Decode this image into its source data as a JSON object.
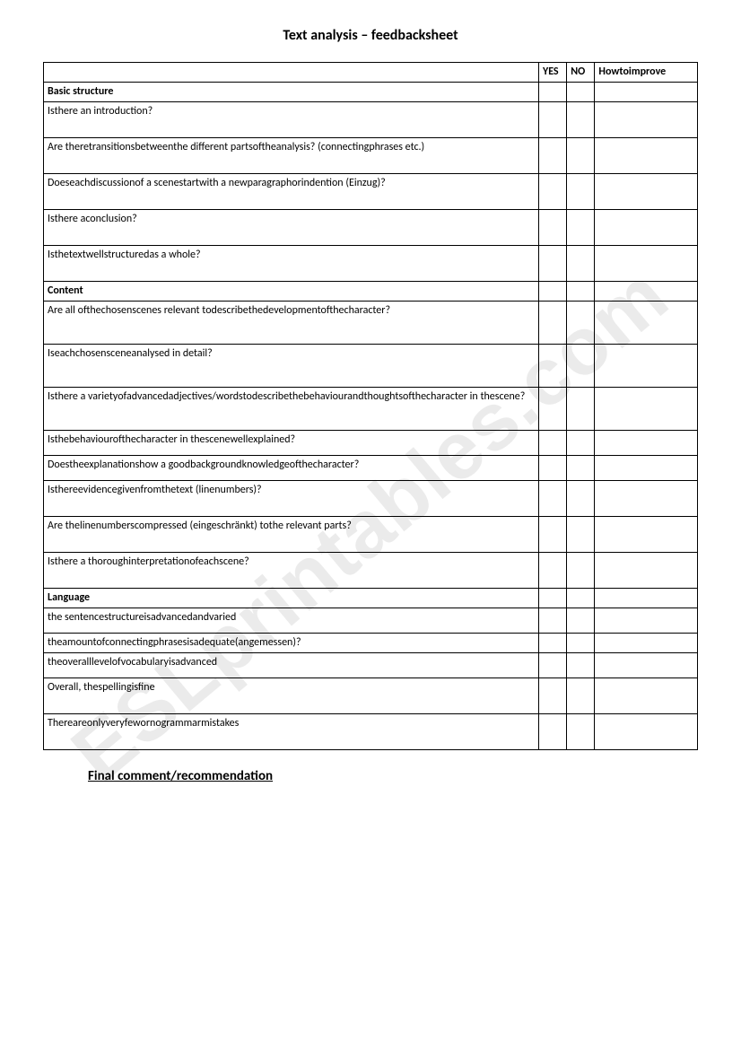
{
  "title": "Text analysis – feedbacksheet",
  "headers": {
    "question": "",
    "yes": "YES",
    "no": "NO",
    "how": "Howtoimprove"
  },
  "sections": [
    {
      "name": "Basic structure",
      "rows": [
        {
          "q": "Isthere an introduction?",
          "cls": "med"
        },
        {
          "q": "Are theretransitionsbetweenthe different partsoftheanalysis? (connectingphrases etc.)",
          "cls": "med"
        },
        {
          "q": "Doeseachdiscussionof a scenestartwith a newparagraphorindention (Einzug)?",
          "cls": "med"
        },
        {
          "q": "Isthere aconclusion?",
          "cls": "med"
        },
        {
          "q": "Isthetextwellstructuredas a whole?",
          "cls": "med"
        }
      ]
    },
    {
      "name": "Content",
      "rows": [
        {
          "q": "Are all ofthechosenscenes relevant todescribethedevelopmentofthecharacter?",
          "cls": "tall"
        },
        {
          "q": "Iseachchosensceneanalysed in detail?",
          "cls": "tall"
        },
        {
          "q": "Isthere a varietyofadvancedadjectives/wordstodescribethebehaviourandthoughtsofthecharacter in thescene?",
          "cls": "tall"
        },
        {
          "q": "Isthebehaviourofthecharacter in thescenewellexplained?",
          "cls": "short"
        },
        {
          "q": "Doestheexplanationshow a goodbackgroundknowledgeofthecharacter?",
          "cls": "short"
        },
        {
          "q": "Isthereevidencegivenfromthetext (linenumbers)?",
          "cls": "med"
        },
        {
          "q": "Are thelinenumberscompressed (eingeschränkt)  tothe relevant parts?",
          "cls": "med"
        },
        {
          "q": "Isthere a thoroughinterpretationofeachscene?",
          "cls": "med"
        }
      ]
    },
    {
      "name": "Language",
      "rows": [
        {
          "q": "the sentencestructureisadvancedandvaried",
          "cls": "short"
        },
        {
          "q": "theamountofconnectingphrasesisadequate(angemessen)?",
          "cls": "vshort"
        },
        {
          "q": "theoveralllevelofvocabularyisadvanced",
          "cls": "short"
        },
        {
          "q": "Overall, thespellingisfine",
          "cls": "med"
        },
        {
          "q": "Thereareonlyveryfewornogrammarmistakes",
          "cls": "med"
        }
      ]
    }
  ],
  "final_comment_label": "Final comment/recommendation",
  "watermark_text": "ESLprintables.com"
}
